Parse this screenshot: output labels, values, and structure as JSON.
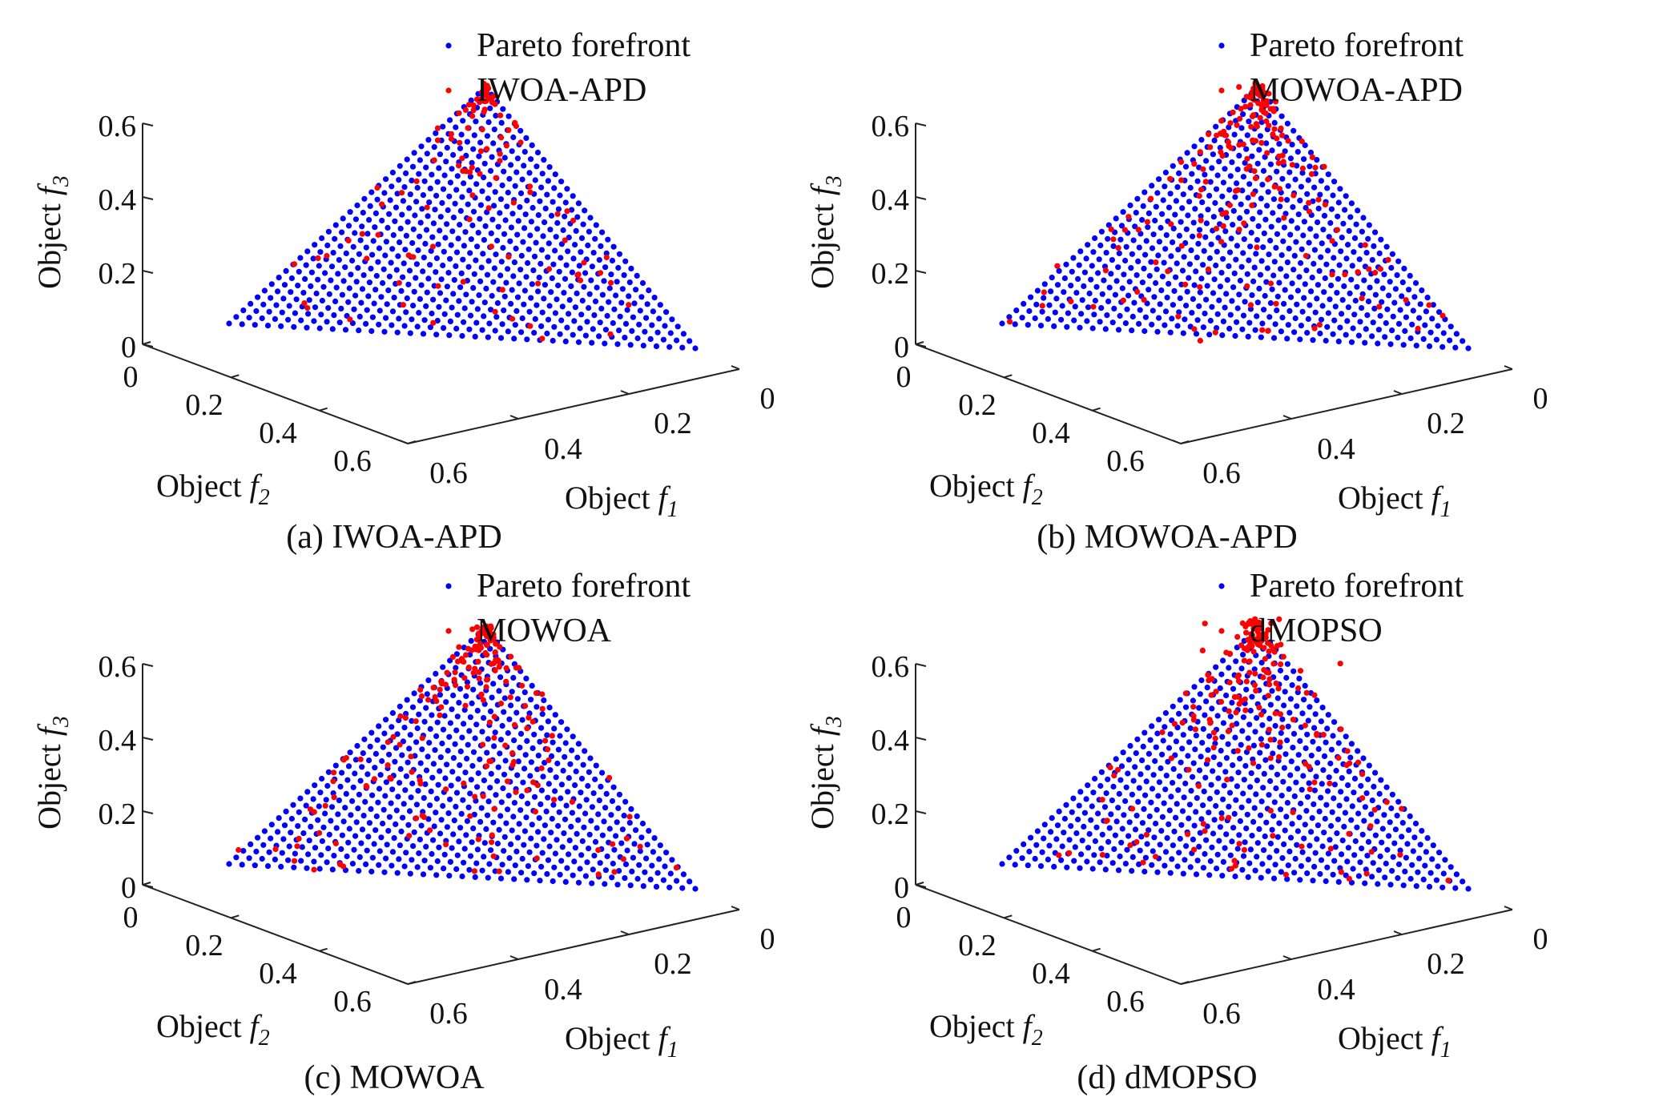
{
  "figure_title": "",
  "chart_data": [
    {
      "type": "scatter",
      "subplot": "a",
      "caption": "(a) IWOA-APD",
      "xlabel": "Object f1",
      "ylabel": "Object f2",
      "zlabel": "Object f3",
      "xlim": [
        0,
        0.6
      ],
      "ylim": [
        0,
        0.6
      ],
      "zlim": [
        0,
        0.6
      ],
      "x_ticks": [
        "0",
        "0.2",
        "0.4",
        "0.6"
      ],
      "y_ticks": [
        "0",
        "0.2",
        "0.4",
        "0.6"
      ],
      "z_ticks": [
        "0",
        "0.2",
        "0.4",
        "0.6"
      ],
      "legend": [
        "Pareto forefront",
        "IWOA-APD"
      ],
      "series": [
        {
          "name": "Pareto forefront",
          "color": "#0000ff",
          "description": "uniform points on plane f1+f2+f3=0.5, H=36"
        },
        {
          "name": "IWOA-APD",
          "color": "#ff0000",
          "count": 120,
          "spread": 0.012,
          "outside_fraction": 0.05,
          "top_bias": 2.2
        }
      ]
    },
    {
      "type": "scatter",
      "subplot": "b",
      "caption": "(b) MOWOA-APD",
      "xlabel": "Object f1",
      "ylabel": "Object f2",
      "zlabel": "Object f3",
      "xlim": [
        0,
        0.6
      ],
      "ylim": [
        0,
        0.6
      ],
      "zlim": [
        0,
        0.6
      ],
      "x_ticks": [
        "0",
        "0.2",
        "0.4",
        "0.6"
      ],
      "y_ticks": [
        "0",
        "0.2",
        "0.4",
        "0.6"
      ],
      "z_ticks": [
        "0",
        "0.2",
        "0.4",
        "0.6"
      ],
      "legend": [
        "Pareto forefront",
        "MOWOA-APD"
      ],
      "series": [
        {
          "name": "Pareto forefront",
          "color": "#0000ff",
          "description": "uniform points on plane f1+f2+f3=0.5, H=36"
        },
        {
          "name": "MOWOA-APD",
          "color": "#ff0000",
          "count": 190,
          "spread": 0.015,
          "outside_fraction": 0.06,
          "top_bias": 1.6
        }
      ]
    },
    {
      "type": "scatter",
      "subplot": "c",
      "caption": "(c) MOWOA",
      "xlabel": "Object f1",
      "ylabel": "Object f2",
      "zlabel": "Object f3",
      "xlim": [
        0,
        0.6
      ],
      "ylim": [
        0,
        0.6
      ],
      "zlim": [
        0,
        0.6
      ],
      "x_ticks": [
        "0",
        "0.2",
        "0.4",
        "0.6"
      ],
      "y_ticks": [
        "0",
        "0.2",
        "0.4",
        "0.6"
      ],
      "z_ticks": [
        "0",
        "0.2",
        "0.4",
        "0.6"
      ],
      "legend": [
        "Pareto forefront",
        "MOWOA"
      ],
      "series": [
        {
          "name": "Pareto forefront",
          "color": "#0000ff",
          "description": "uniform points on plane f1+f2+f3=0.5, H=36"
        },
        {
          "name": "MOWOA",
          "color": "#ff0000",
          "count": 200,
          "spread": 0.02,
          "outside_fraction": 0.08,
          "top_bias": 2.0
        }
      ]
    },
    {
      "type": "scatter",
      "subplot": "d",
      "caption": "(d) dMOPSO",
      "xlabel": "Object f1",
      "ylabel": "Object f2",
      "zlabel": "Object f3",
      "xlim": [
        0,
        0.6
      ],
      "ylim": [
        0,
        0.6
      ],
      "zlim": [
        0,
        0.6
      ],
      "x_ticks": [
        "0",
        "0.2",
        "0.4",
        "0.6"
      ],
      "y_ticks": [
        "0",
        "0.2",
        "0.4",
        "0.6"
      ],
      "z_ticks": [
        "0",
        "0.2",
        "0.4",
        "0.6"
      ],
      "legend": [
        "Pareto forefront",
        "dMOPSO"
      ],
      "series": [
        {
          "name": "Pareto forefront",
          "color": "#0000ff",
          "description": "uniform points on plane f1+f2+f3=0.5, H=36"
        },
        {
          "name": "dMOPSO",
          "color": "#ff0000",
          "count": 200,
          "spread": 0.03,
          "outside_fraction": 0.15,
          "top_bias": 1.8
        }
      ]
    }
  ]
}
